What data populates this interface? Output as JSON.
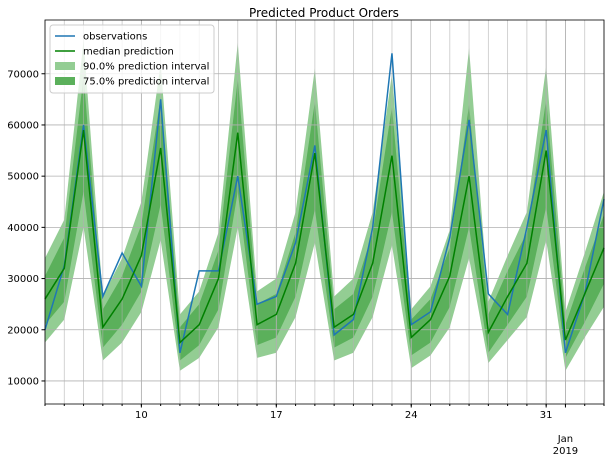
{
  "chart_data": {
    "type": "line",
    "title": "Predicted Product Orders",
    "x": [
      5,
      6,
      7,
      8,
      9,
      10,
      11,
      12,
      13,
      14,
      15,
      16,
      17,
      18,
      19,
      20,
      21,
      22,
      23,
      24,
      25,
      26,
      27,
      28,
      29,
      30,
      31,
      32,
      33,
      34
    ],
    "series": [
      {
        "name": "observations",
        "color": "#1f77b4",
        "values": [
          20000,
          32500,
          60000,
          26500,
          35000,
          28500,
          65000,
          15500,
          31500,
          31500,
          50000,
          25000,
          26500,
          37000,
          56000,
          19000,
          22000,
          40000,
          74000,
          21000,
          23500,
          38000,
          61000,
          27000,
          23000,
          40000,
          59000,
          15500,
          27000,
          45500
        ]
      },
      {
        "name": "median prediction",
        "color": "#008000",
        "values": [
          26000,
          32000,
          59000,
          20500,
          26000,
          34500,
          55500,
          17500,
          21000,
          30000,
          58500,
          21000,
          23000,
          33000,
          54500,
          20500,
          23000,
          33000,
          54000,
          18500,
          22000,
          30500,
          50000,
          19500,
          26500,
          33000,
          55000,
          18000,
          27000,
          36000
        ]
      }
    ],
    "bands": [
      {
        "name": "90.0% prediction interval",
        "color": "#93cd93",
        "lower": [
          17500,
          22000,
          40000,
          14000,
          17500,
          23500,
          37500,
          12000,
          14500,
          20500,
          40000,
          14500,
          15500,
          22500,
          37000,
          14000,
          15500,
          22500,
          36500,
          12500,
          15000,
          20500,
          34000,
          13500,
          18000,
          22500,
          37500,
          12000,
          18500,
          24500
        ],
        "upper": [
          34000,
          41500,
          76500,
          26500,
          34000,
          45000,
          72000,
          23000,
          27500,
          39000,
          76000,
          27500,
          30000,
          43000,
          71000,
          26500,
          30000,
          43000,
          70000,
          24000,
          28500,
          39500,
          75000,
          25500,
          34500,
          43000,
          71500,
          23500,
          35000,
          47000
        ]
      },
      {
        "name": "75.0% prediction interval",
        "color": "#5bb05b",
        "lower": [
          21000,
          25500,
          47000,
          16500,
          21000,
          27500,
          44500,
          14000,
          17000,
          24000,
          47000,
          17000,
          18500,
          26500,
          43500,
          16500,
          18500,
          26500,
          43000,
          15000,
          17500,
          24500,
          40000,
          15500,
          21000,
          26500,
          44000,
          14500,
          21500,
          29000
        ],
        "upper": [
          30500,
          38000,
          69500,
          24000,
          30500,
          40500,
          65500,
          20500,
          25000,
          35500,
          69000,
          25000,
          27000,
          39000,
          64500,
          24000,
          27000,
          39000,
          63500,
          22000,
          26000,
          36000,
          64000,
          23000,
          31500,
          39000,
          65000,
          21000,
          32000,
          42500
        ]
      }
    ],
    "xlim": [
      5,
      34
    ],
    "ylim": [
      5500,
      80500
    ],
    "xticks": [
      10,
      17,
      24,
      31,
      {
        "value": 32,
        "label": "Jan\n2019"
      }
    ],
    "yticks": [
      10000,
      20000,
      30000,
      40000,
      50000,
      60000,
      70000
    ],
    "grid": true,
    "legend": "upper left"
  }
}
